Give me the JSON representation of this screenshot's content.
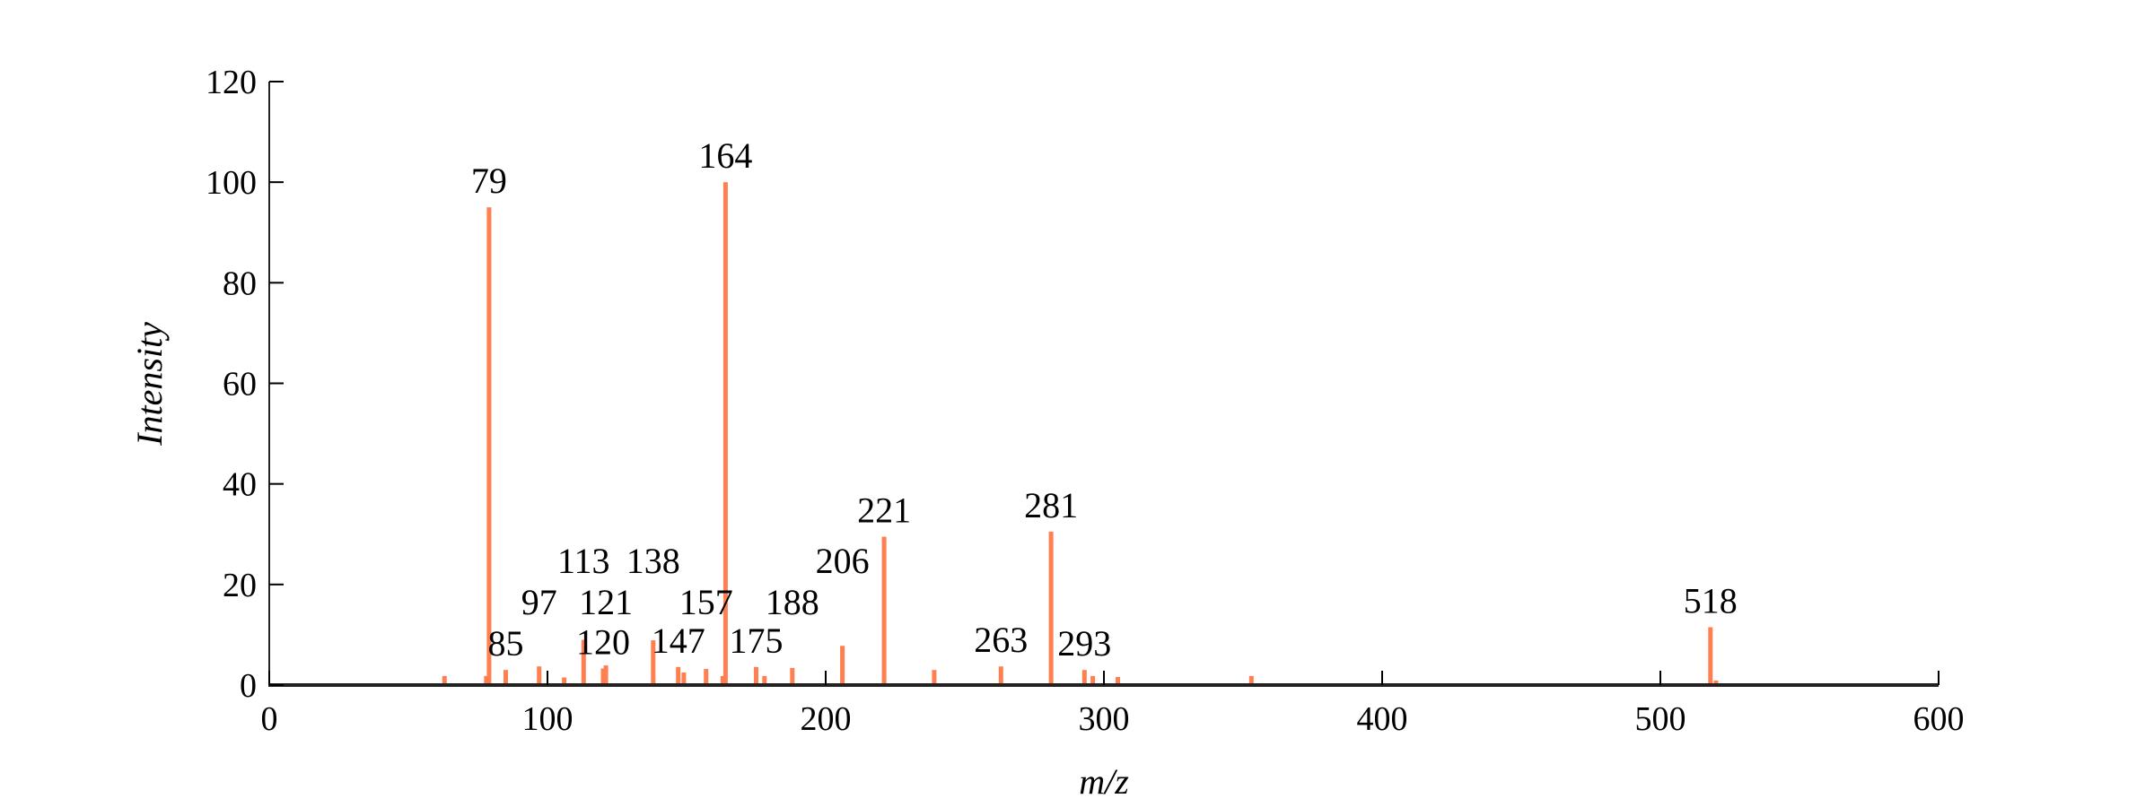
{
  "chart_data": {
    "type": "bar",
    "title": "",
    "xlabel": "m/z",
    "ylabel": "Intensity",
    "xlim": [
      0,
      600
    ],
    "ylim": [
      0,
      120
    ],
    "xticks": [
      0,
      100,
      200,
      300,
      400,
      500,
      600
    ],
    "yticks": [
      0,
      20,
      40,
      60,
      80,
      100,
      120
    ],
    "grid": false,
    "bar_color": "#ff7f50",
    "peaks": [
      {
        "mz": 63,
        "intensity": 1.8
      },
      {
        "mz": 78,
        "intensity": 1.8
      },
      {
        "mz": 79,
        "intensity": 95,
        "label": "79"
      },
      {
        "mz": 85,
        "intensity": 3.0,
        "label": "85"
      },
      {
        "mz": 97,
        "intensity": 3.7,
        "label": "97"
      },
      {
        "mz": 106,
        "intensity": 1.5
      },
      {
        "mz": 113,
        "intensity": 9.0,
        "label": "113"
      },
      {
        "mz": 120,
        "intensity": 3.3,
        "label": "120"
      },
      {
        "mz": 121,
        "intensity": 3.9,
        "label": "121"
      },
      {
        "mz": 138,
        "intensity": 8.9,
        "label": "138"
      },
      {
        "mz": 147,
        "intensity": 3.6,
        "label": "147"
      },
      {
        "mz": 149,
        "intensity": 2.5
      },
      {
        "mz": 157,
        "intensity": 3.2,
        "label": "157"
      },
      {
        "mz": 163,
        "intensity": 1.8
      },
      {
        "mz": 164,
        "intensity": 100,
        "label": "164"
      },
      {
        "mz": 175,
        "intensity": 3.6,
        "label": "175"
      },
      {
        "mz": 178,
        "intensity": 1.8
      },
      {
        "mz": 188,
        "intensity": 3.4,
        "label": "188"
      },
      {
        "mz": 206,
        "intensity": 7.8,
        "label": "206"
      },
      {
        "mz": 221,
        "intensity": 29.5,
        "label": "221"
      },
      {
        "mz": 239,
        "intensity": 3.0
      },
      {
        "mz": 263,
        "intensity": 3.7,
        "label": "263"
      },
      {
        "mz": 281,
        "intensity": 30.5,
        "label": "281"
      },
      {
        "mz": 293,
        "intensity": 3.0,
        "label": "293"
      },
      {
        "mz": 296,
        "intensity": 1.8
      },
      {
        "mz": 305,
        "intensity": 1.6
      },
      {
        "mz": 353,
        "intensity": 1.8
      },
      {
        "mz": 518,
        "intensity": 11.5,
        "label": "518"
      },
      {
        "mz": 520,
        "intensity": 0.9
      }
    ]
  }
}
